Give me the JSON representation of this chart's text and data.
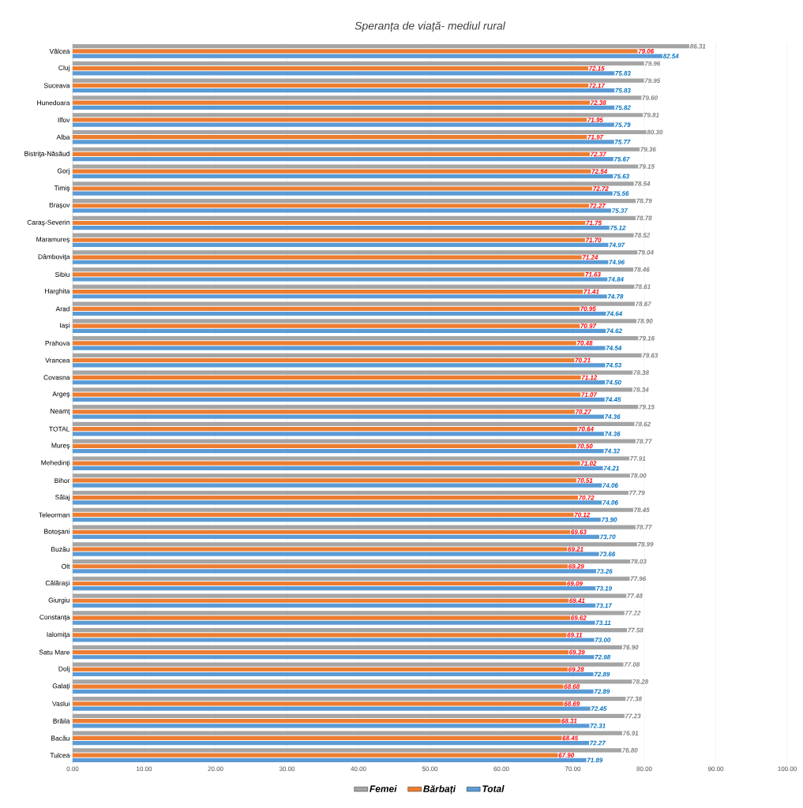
{
  "chart_data": {
    "type": "bar",
    "orientation": "horizontal",
    "title": "Speranța de viață- mediul rural",
    "categories": [
      "Vâlcea",
      "Cluj",
      "Suceava",
      "Hunedoara",
      "Ilfov",
      "Alba",
      "Bistriţa-Năsăud",
      "Gorj",
      "Timiş",
      "Braşov",
      "Caraş-Severin",
      "Maramureş",
      "Dâmboviţa",
      "Sibiu",
      "Harghita",
      "Arad",
      "Iaşi",
      "Prahova",
      "Vrancea",
      "Covasna",
      "Argeş",
      "Neamţ",
      "TOTAL",
      "Mureş",
      "Mehedinţi",
      "Bihor",
      "Sălaj",
      "Teleorman",
      "Botoşani",
      "Buzău",
      "Olt",
      "Călăraşi",
      "Giurgiu",
      "Constanţa",
      "Ialomiţa",
      "Satu Mare",
      "Dolj",
      "Galaţi",
      "Vaslui",
      "Brăila",
      "Bacău",
      "Tulcea"
    ],
    "series": [
      {
        "name": "Femei",
        "color": "#a5a5a5",
        "values": [
          86.31,
          79.96,
          79.95,
          79.6,
          79.81,
          80.3,
          79.36,
          79.15,
          78.54,
          78.79,
          78.78,
          78.52,
          79.04,
          78.46,
          78.61,
          78.67,
          78.9,
          79.16,
          79.63,
          78.38,
          78.34,
          79.15,
          78.62,
          78.77,
          77.91,
          78.0,
          77.79,
          78.45,
          78.77,
          78.99,
          78.03,
          77.96,
          77.48,
          77.22,
          77.58,
          76.9,
          77.08,
          78.28,
          77.38,
          77.23,
          76.91,
          76.8
        ],
        "value_labels": [
          "86.31",
          "79.96",
          "79.95",
          "79.60",
          "79.81",
          "80.30",
          "79.36",
          "79.15",
          "78.54",
          "78.79",
          "78.78",
          "78.52",
          "79.04",
          "78.46",
          "78.61",
          "78.67",
          "78.90",
          "79.16",
          "79.63",
          "78.38",
          "78.34",
          "79.15",
          "78.62",
          "78.77",
          "77.91",
          "78.00",
          "77.79",
          "78.45",
          "78.77",
          "78.99",
          "78.03",
          "77.96",
          "77.48",
          "77.22",
          "77.58",
          "76.90",
          "77.08",
          "78.28",
          "77.38",
          "77.23",
          "76.91",
          "76.80"
        ]
      },
      {
        "name": "Bărbați",
        "color": "#ed7d31",
        "values": [
          79.06,
          72.15,
          72.17,
          72.38,
          71.95,
          71.97,
          72.37,
          72.54,
          72.72,
          72.27,
          71.75,
          71.7,
          71.24,
          71.63,
          71.41,
          70.95,
          70.97,
          70.48,
          70.21,
          71.12,
          71.07,
          70.27,
          70.64,
          70.5,
          71.02,
          70.51,
          70.72,
          70.12,
          69.63,
          69.21,
          69.29,
          69.09,
          69.41,
          69.62,
          69.11,
          69.39,
          69.28,
          68.68,
          68.69,
          68.31,
          68.45,
          67.9
        ],
        "value_labels": [
          "79.06",
          "72.15",
          "72.17",
          "72.38",
          "71.95",
          "71.97",
          "72.37",
          "72.54",
          "72.72",
          "72.27",
          "71.75",
          "71.70",
          "71.24",
          "71.63",
          "71.41",
          "70.95",
          "70.97",
          "70.48",
          "70.21",
          "71.12",
          "71.07",
          "70.27",
          "70.64",
          "70.50",
          "71.02",
          "70.51",
          "70.72",
          "70.12",
          "69.63",
          "69.21",
          "69.29",
          "69.09",
          "69.41",
          "69.62",
          "69.11",
          "69.39",
          "69.28",
          "68.68",
          "68.69",
          "68.31",
          "68.45",
          "67.90"
        ]
      },
      {
        "name": "Total",
        "color": "#5b9bd5",
        "values": [
          82.54,
          75.83,
          75.83,
          75.82,
          75.79,
          75.77,
          75.67,
          75.63,
          75.56,
          75.37,
          75.12,
          74.97,
          74.96,
          74.84,
          74.78,
          74.64,
          74.62,
          74.54,
          74.53,
          74.5,
          74.45,
          74.36,
          74.36,
          74.32,
          74.21,
          74.06,
          74.06,
          73.9,
          73.7,
          73.66,
          73.26,
          73.19,
          73.17,
          73.11,
          73.0,
          72.98,
          72.89,
          72.89,
          72.45,
          72.31,
          72.27,
          71.89
        ],
        "value_labels": [
          "82.54",
          "75.83",
          "75.83",
          "75.82",
          "75.79",
          "75.77",
          "75.67",
          "75.63",
          "75.56",
          "75.37",
          "75.12",
          "74.97",
          "74.96",
          "74.84",
          "74.78",
          "74.64",
          "74.62",
          "74.54",
          "74.53",
          "74.50",
          "74.45",
          "74.36",
          "74.36",
          "74.32",
          "74.21",
          "74.06",
          "74.06",
          "73.90",
          "73.70",
          "73.66",
          "73.26",
          "73.19",
          "73.17",
          "73.11",
          "73.00",
          "72.98",
          "72.89",
          "72.89",
          "72.45",
          "72.31",
          "72.27",
          "71.89"
        ]
      }
    ],
    "xlim": [
      0,
      100
    ],
    "xticks": [
      {
        "value": 0,
        "label": "0.00"
      },
      {
        "value": 10,
        "label": "10.00"
      },
      {
        "value": 20,
        "label": "20.00"
      },
      {
        "value": 30,
        "label": "30.00"
      },
      {
        "value": 40,
        "label": "40.00"
      },
      {
        "value": 50,
        "label": "50.00"
      },
      {
        "value": 60,
        "label": "60.00"
      },
      {
        "value": 70,
        "label": "70.00"
      },
      {
        "value": 80,
        "label": "80.00"
      },
      {
        "value": 90,
        "label": "90.00"
      },
      {
        "value": 100,
        "label": "100.00"
      }
    ],
    "grid": "x",
    "legend": "bottom"
  }
}
